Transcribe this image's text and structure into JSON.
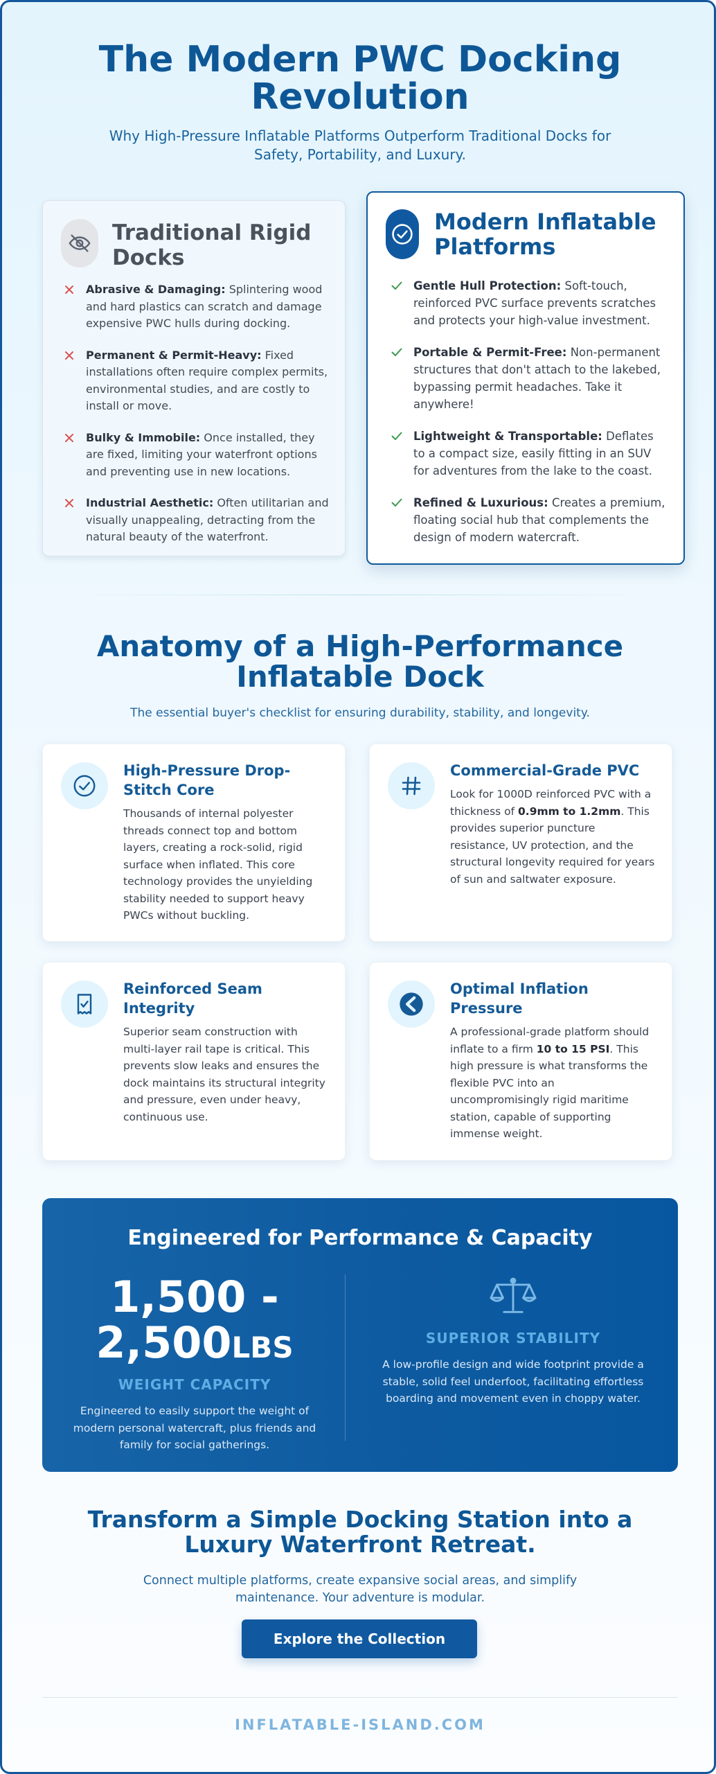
{
  "hero": {
    "title": "The Modern PWC Docking Revolution",
    "subtitle": "Why High-Pressure Inflatable Platforms Outperform Traditional Docks for Safety, Portability, and Luxury."
  },
  "traditional": {
    "title": "Traditional Rigid Docks",
    "icon": "eye-slash-icon",
    "mark_color": "#d9534f",
    "items": [
      {
        "bold": "Abrasive & Damaging:",
        "text": " Splintering wood and hard plastics can scratch and damage expensive PWC hulls during docking."
      },
      {
        "bold": "Permanent & Permit-Heavy:",
        "text": " Fixed installations often require complex permits, environmental studies, and are costly to install or move."
      },
      {
        "bold": "Bulky & Immobile:",
        "text": " Once installed, they are fixed, limiting your waterfront options and preventing use in new locations."
      },
      {
        "bold": "Industrial Aesthetic:",
        "text": " Often utilitarian and visually unappealing, detracting from the natural beauty of the waterfront."
      }
    ]
  },
  "modern": {
    "title": "Modern Inflatable Platforms",
    "icon": "check-circle-icon",
    "mark_color": "#3c9a4f",
    "items": [
      {
        "bold": "Gentle Hull Protection:",
        "text": " Soft-touch, reinforced PVC surface prevents scratches and protects your high-value investment."
      },
      {
        "bold": "Portable & Permit-Free:",
        "text": " Non-permanent structures that don't attach to the lakebed, bypassing permit headaches. Take it anywhere!"
      },
      {
        "bold": "Lightweight & Transportable:",
        "text": " Deflates to a compact size, easily fitting in an SUV for adventures from the lake to the coast."
      },
      {
        "bold": "Refined & Luxurious:",
        "text": " Creates a premium, floating social hub that complements the design of modern watercraft."
      }
    ]
  },
  "anatomy": {
    "title": "Anatomy of a High-Performance Inflatable Dock",
    "subtitle": "The essential buyer's checklist for ensuring durability, stability, and longevity.",
    "features": [
      {
        "icon": "check-circle-icon",
        "title": "High-Pressure Drop-Stitch Core",
        "pre": "Thousands of internal polyester threads connect top and bottom layers, creating a rock-solid, rigid surface when inflated. This core technology provides the unyielding stability needed to support heavy PWCs without buckling.",
        "bold": "",
        "post": ""
      },
      {
        "icon": "hash-grid-icon",
        "title": "Commercial-Grade PVC",
        "pre": "Look for 1000D reinforced PVC with a thickness of ",
        "bold": "0.9mm to 1.2mm",
        "post": ". This provides superior puncture resistance, UV protection, and the structural longevity required for years of sun and saltwater exposure."
      },
      {
        "icon": "receipt-check-icon",
        "title": "Reinforced Seam Integrity",
        "pre": "Superior seam construction with multi-layer rail tape is critical. This prevents slow leaks and ensures the dock maintains its structural integrity and pressure, even under heavy, continuous use.",
        "bold": "",
        "post": ""
      },
      {
        "icon": "gauge-icon",
        "title": "Optimal Inflation Pressure",
        "pre": "A professional-grade platform should inflate to a firm ",
        "bold": "10 to 15 PSI",
        "post": ". This high pressure is what transforms the flexible PVC into an uncompromisingly rigid maritime station, capable of supporting immense weight."
      }
    ]
  },
  "performance": {
    "title": "Engineered for Performance & Capacity",
    "capacity_value": "1,500 - 2,500",
    "capacity_unit": "LBS",
    "capacity_label": "WEIGHT CAPACITY",
    "capacity_desc": "Engineered to easily support the weight of modern personal watercraft, plus friends and family for social gatherings.",
    "stability_icon": "balance-scale-icon",
    "stability_label": "SUPERIOR STABILITY",
    "stability_desc": "A low-profile design and wide footprint provide a stable, solid feel underfoot, facilitating effortless boarding and movement even in choppy water."
  },
  "cta": {
    "title": "Transform a Simple Docking Station into a Luxury Waterfront Retreat.",
    "subtitle": "Connect multiple platforms, create expansive social areas, and simplify maintenance. Your adventure is modular.",
    "button": "Explore the Collection"
  },
  "footer": {
    "brand": "INFLATABLE-ISLAND.COM"
  }
}
